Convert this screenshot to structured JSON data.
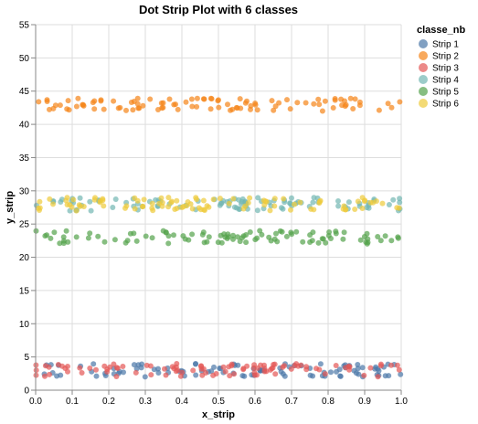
{
  "chart_data": {
    "type": "scatter",
    "title": "Dot Strip Plot with 6 classes",
    "xlabel": "x_strip",
    "ylabel": "y_strip",
    "xlim": [
      0,
      1
    ],
    "ylim": [
      0,
      55
    ],
    "x_ticks": [
      "0.0",
      "0.1",
      "0.2",
      "0.3",
      "0.4",
      "0.5",
      "0.6",
      "0.7",
      "0.8",
      "0.9",
      "1.0"
    ],
    "y_ticks": [
      "0",
      "5",
      "10",
      "15",
      "20",
      "25",
      "30",
      "35",
      "40",
      "45",
      "50",
      "55"
    ],
    "grid": true,
    "legend": {
      "title": "classe_nb",
      "placement": "top-right"
    },
    "point_count_per_series": 100,
    "series": [
      {
        "name": "Strip 1",
        "color": "#4c78a8",
        "y_range": [
          2,
          4
        ]
      },
      {
        "name": "Strip 2",
        "color": "#f58518",
        "y_range": [
          42,
          44
        ]
      },
      {
        "name": "Strip 3",
        "color": "#e45756",
        "y_range": [
          2,
          4
        ]
      },
      {
        "name": "Strip 4",
        "color": "#72b7b2",
        "y_range": [
          27,
          29
        ]
      },
      {
        "name": "Strip 5",
        "color": "#54a24b",
        "y_range": [
          22,
          24
        ]
      },
      {
        "name": "Strip 6",
        "color": "#eeca3b",
        "y_range": [
          27,
          29
        ]
      }
    ]
  }
}
